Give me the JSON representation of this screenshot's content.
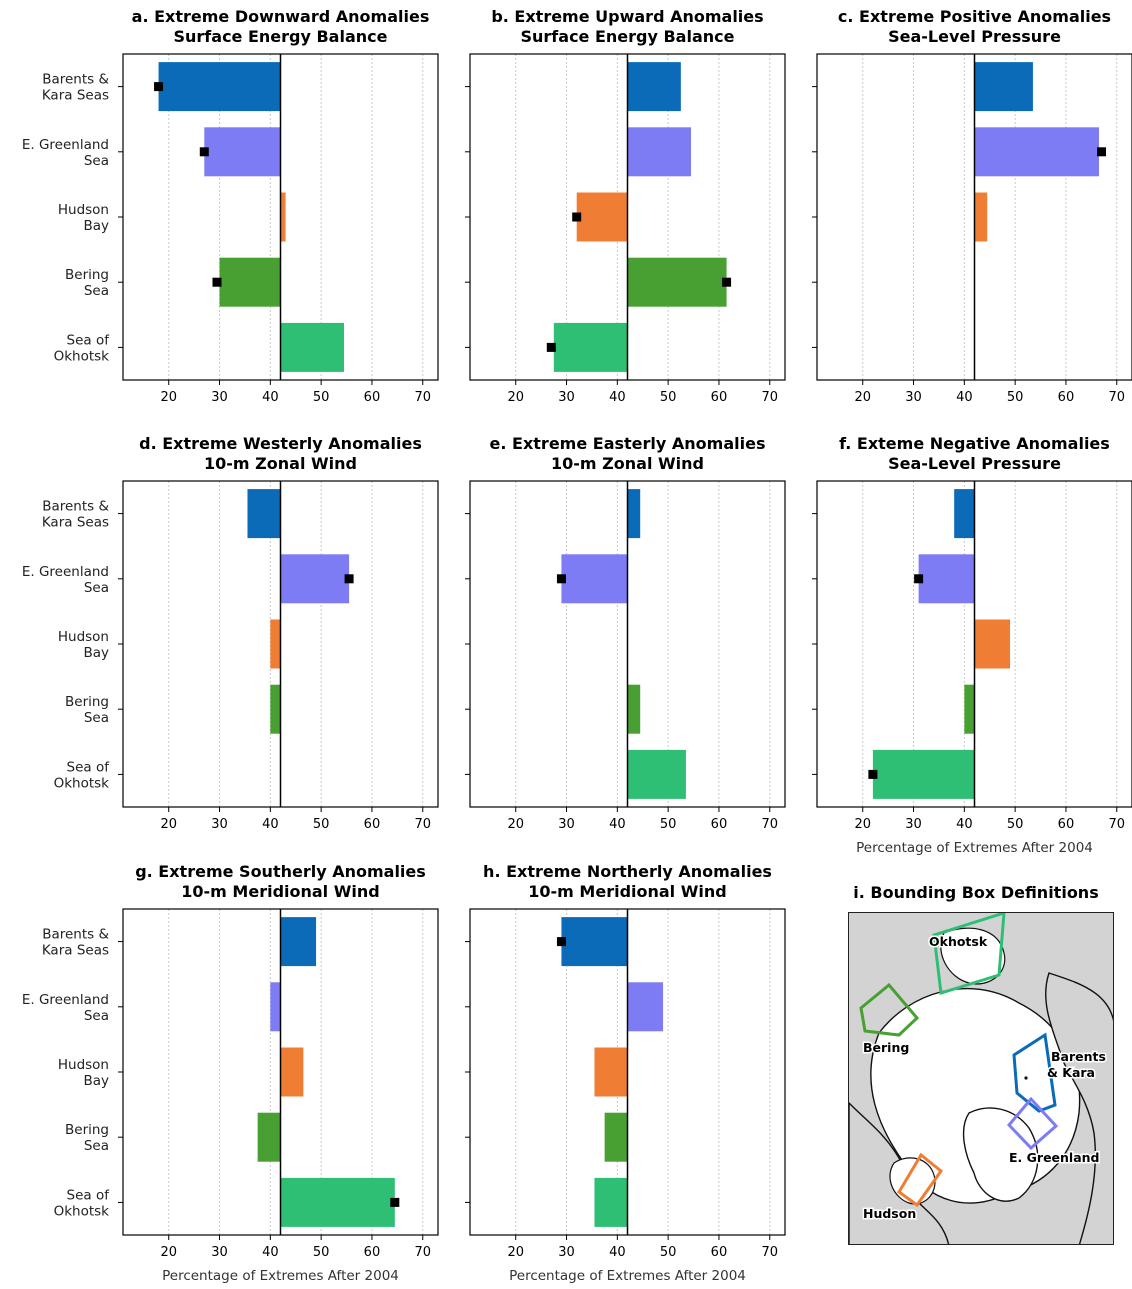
{
  "figure": {
    "colors": {
      "Barents & Kara Seas": "#0b6bb8",
      "E. Greenland Sea": "#7d7cf5",
      "Hudson Bay": "#ef7d33",
      "Bering Sea": "#48a032",
      "Sea of Okhotsk": "#2fbf74",
      "marker": "#000000"
    },
    "x_axis_label": "Percentage of Extremes After 2004",
    "xticks": [
      20,
      30,
      40,
      50,
      60,
      70
    ],
    "reference_x": 42
  },
  "map": {
    "title": "i. Bounding Box Definitions",
    "labels": {
      "okhotsk": "Okhotsk",
      "bering": "Bering",
      "barents": "Barents\n& Kara",
      "greenland": "E. Greenland",
      "hudson": "Hudson"
    }
  },
  "chart_data": [
    {
      "type": "bar",
      "orientation": "horizontal",
      "title": "a. Extreme Downward Anomalies\nSurface Energy Balance",
      "categories": [
        "Barents &\nKara Seas",
        "E. Greenland\nSea",
        "Hudson\nBay",
        "Bering\nSea",
        "Sea of\nOkhotsk"
      ],
      "values": [
        18,
        27,
        43,
        30,
        54.5
      ],
      "markers": [
        18,
        27,
        null,
        29.5,
        null
      ],
      "xlim": [
        11,
        73
      ],
      "xlabel": "",
      "show_yticklabels": true
    },
    {
      "type": "bar",
      "orientation": "horizontal",
      "title": "b. Extreme Upward Anomalies\nSurface Energy Balance",
      "categories": [
        "Barents &\nKara Seas",
        "E. Greenland\nSea",
        "Hudson\nBay",
        "Bering\nSea",
        "Sea of\nOkhotsk"
      ],
      "values": [
        52.5,
        54.5,
        32,
        61.5,
        27.5
      ],
      "markers": [
        null,
        null,
        32,
        61.5,
        27
      ],
      "xlim": [
        11,
        73
      ],
      "xlabel": "",
      "show_yticklabels": false
    },
    {
      "type": "bar",
      "orientation": "horizontal",
      "title": "c. Extreme Positive Anomalies\nSea-Level Pressure",
      "categories": [
        "Barents &\nKara Seas",
        "E. Greenland\nSea",
        "Hudson\nBay",
        "Bering\nSea",
        "Sea of\nOkhotsk"
      ],
      "values": [
        53.5,
        66.5,
        44.5,
        null,
        null
      ],
      "markers": [
        null,
        67,
        null,
        null,
        null
      ],
      "xlim": [
        11,
        73
      ],
      "xlabel": "",
      "show_yticklabels": false
    },
    {
      "type": "bar",
      "orientation": "horizontal",
      "title": "d. Extreme Westerly Anomalies\n10-m Zonal Wind",
      "categories": [
        "Barents &\nKara Seas",
        "E. Greenland\nSea",
        "Hudson\nBay",
        "Bering\nSea",
        "Sea of\nOkhotsk"
      ],
      "values": [
        35.5,
        55.5,
        40,
        40,
        null
      ],
      "markers": [
        null,
        55.5,
        null,
        null,
        null
      ],
      "xlim": [
        11,
        73
      ],
      "xlabel": "",
      "show_yticklabels": true
    },
    {
      "type": "bar",
      "orientation": "horizontal",
      "title": "e. Extreme Easterly Anomalies\n10-m Zonal Wind",
      "categories": [
        "Barents &\nKara Seas",
        "E. Greenland\nSea",
        "Hudson\nBay",
        "Bering\nSea",
        "Sea of\nOkhotsk"
      ],
      "values": [
        44.5,
        29,
        null,
        44.5,
        53.5
      ],
      "markers": [
        null,
        29,
        null,
        null,
        null
      ],
      "xlim": [
        11,
        73
      ],
      "xlabel": "",
      "show_yticklabels": false
    },
    {
      "type": "bar",
      "orientation": "horizontal",
      "title": "f. Exteme Negative Anomalies\nSea-Level Pressure",
      "categories": [
        "Barents &\nKara Seas",
        "E. Greenland\nSea",
        "Hudson\nBay",
        "Bering\nSea",
        "Sea of\nOkhotsk"
      ],
      "values": [
        38,
        31,
        49,
        40,
        22
      ],
      "markers": [
        null,
        31,
        null,
        null,
        22
      ],
      "xlim": [
        11,
        73
      ],
      "xlabel": "Percentage of Extremes After 2004",
      "show_yticklabels": false
    },
    {
      "type": "bar",
      "orientation": "horizontal",
      "title": "g. Extreme Southerly Anomalies\n10-m Meridional Wind",
      "categories": [
        "Barents &\nKara Seas",
        "E. Greenland\nSea",
        "Hudson\nBay",
        "Bering\nSea",
        "Sea of\nOkhotsk"
      ],
      "values": [
        49,
        40,
        46.5,
        37.5,
        64.5
      ],
      "markers": [
        null,
        null,
        null,
        null,
        64.5
      ],
      "xlim": [
        11,
        73
      ],
      "xlabel": "Percentage of Extremes After 2004",
      "show_yticklabels": true
    },
    {
      "type": "bar",
      "orientation": "horizontal",
      "title": "h. Extreme Northerly Anomalies\n10-m Meridional Wind",
      "categories": [
        "Barents &\nKara Seas",
        "E. Greenland\nSea",
        "Hudson\nBay",
        "Bering\nSea",
        "Sea of\nOkhotsk"
      ],
      "values": [
        29,
        49,
        35.5,
        37.5,
        35.5
      ],
      "markers": [
        29,
        null,
        null,
        null,
        null
      ],
      "xlim": [
        11,
        73
      ],
      "xlabel": "Percentage of Extremes After 2004",
      "show_yticklabels": false
    }
  ]
}
